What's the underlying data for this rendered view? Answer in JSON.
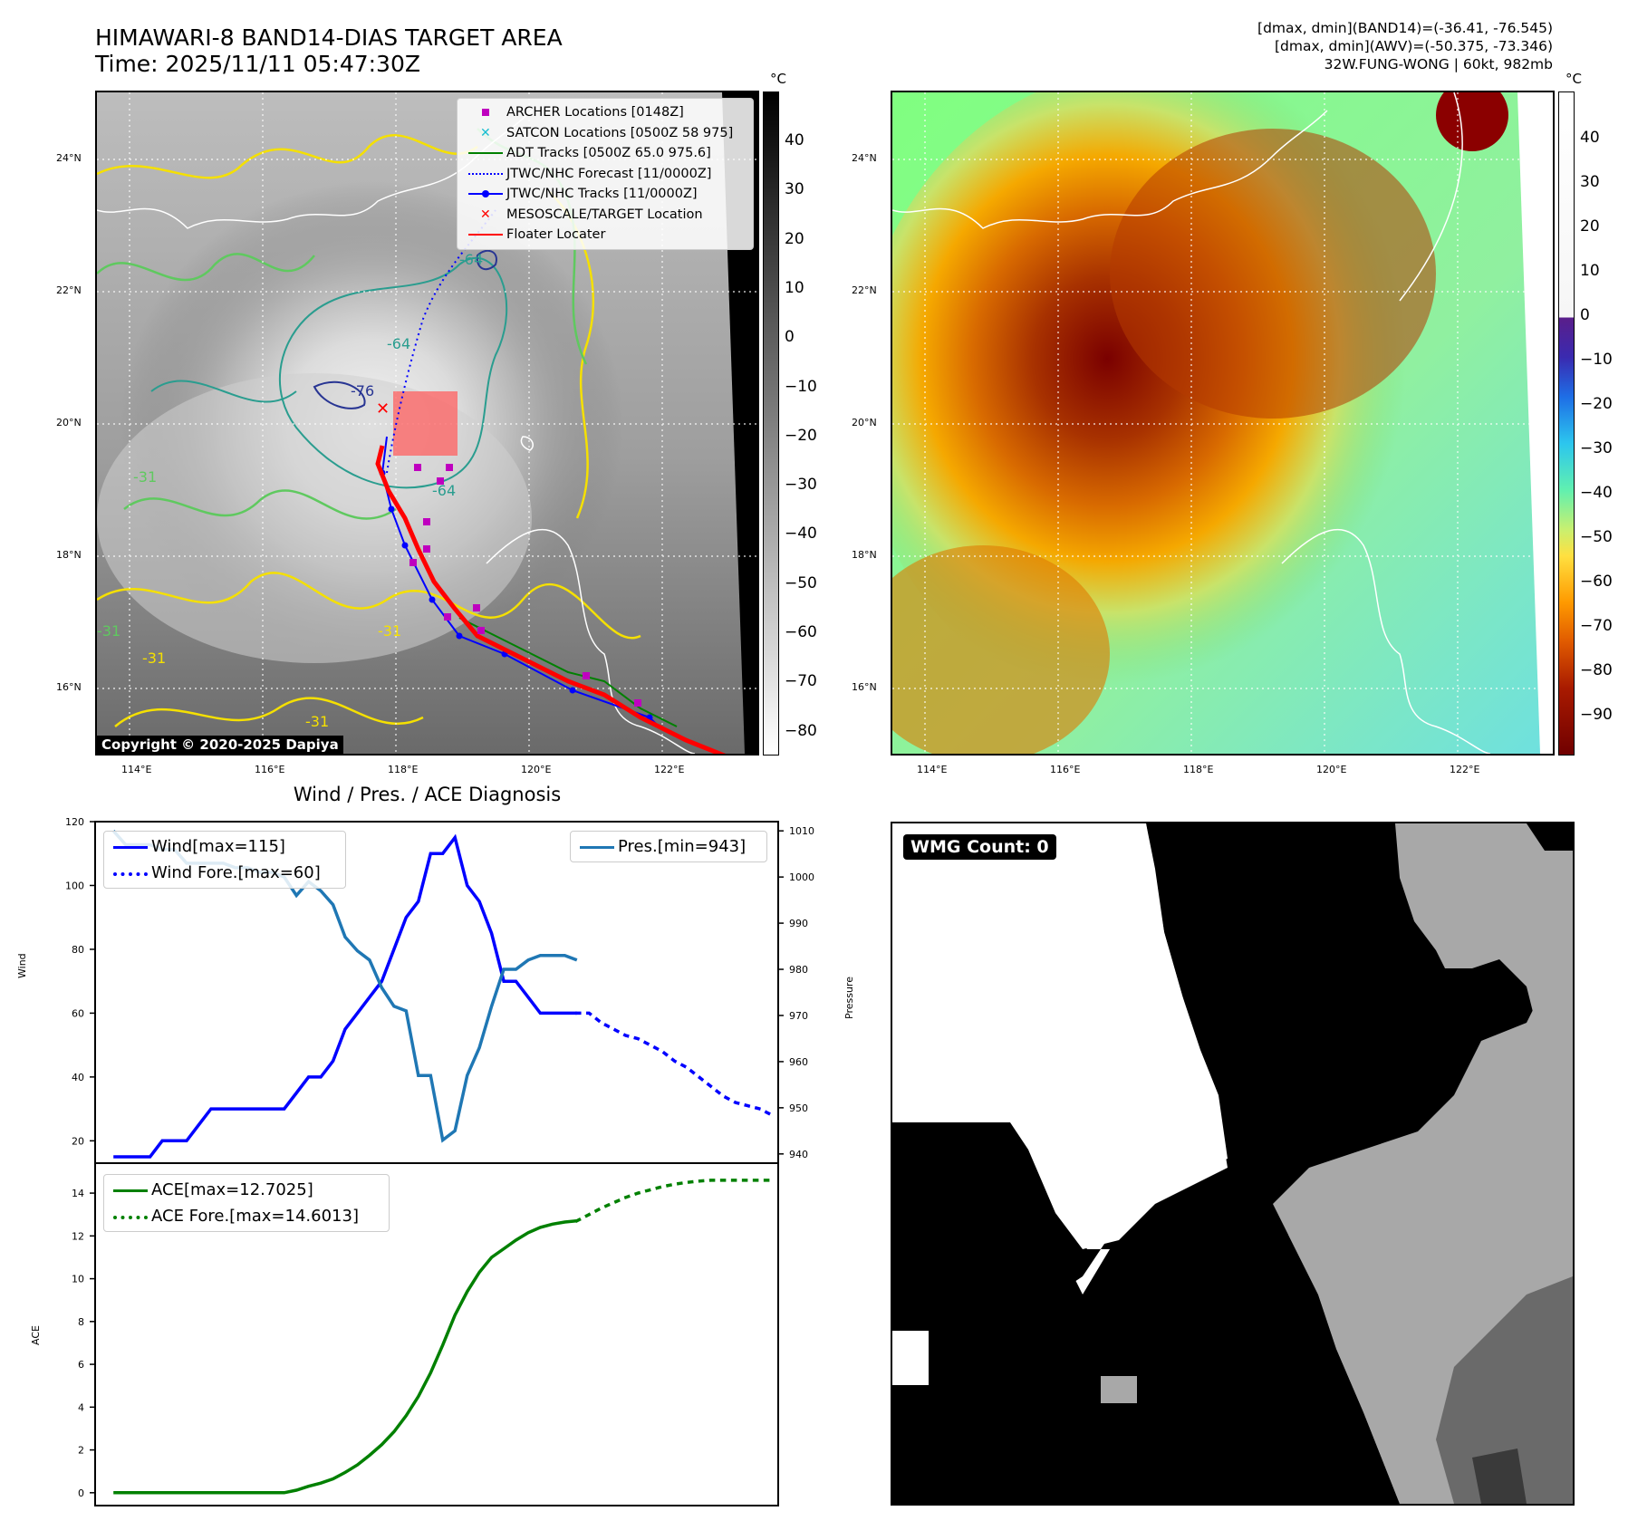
{
  "header": {
    "title_line1": "HIMAWARI-8 BAND14-DIAS TARGET AREA",
    "title_line2": "Time: 2025/11/11 05:47:30Z",
    "info_line1": "[dmax, dmin](BAND14)=(-36.41, -76.545)",
    "info_line2": "[dmax, dmin](AWV)=(-50.375, -73.346)",
    "info_line3": "32W.FUNG-WONG | 60kt, 982mb"
  },
  "colors": {
    "wind": "#0000ff",
    "pressure": "#1f77b4",
    "ace": "#008000",
    "track_red": "#ff0000",
    "archer": "#bf00bf",
    "satcon": "#17becf",
    "adt": "#008000"
  },
  "map_axes": {
    "lat_labels": [
      "24°N",
      "22°N",
      "20°N",
      "18°N",
      "16°N"
    ],
    "lon_labels": [
      "114°E",
      "116°E",
      "118°E",
      "120°E",
      "122°E"
    ],
    "contour_labels": [
      "-64",
      "-64",
      "-76",
      "-31",
      "-31",
      "-31",
      "-31",
      "-31",
      "-64"
    ]
  },
  "left_map": {
    "legend": [
      {
        "label": "ARCHER Locations [0148Z]",
        "icon": "square-marker-icon"
      },
      {
        "label": "SATCON Locations [0500Z 58 975]",
        "icon": "x-marker-icon"
      },
      {
        "label": "ADT Tracks [0500Z 65.0 975.6]",
        "icon": "solid-line-icon"
      },
      {
        "label": "JTWC/NHC Forecast [11/0000Z]",
        "icon": "dotted-line-icon"
      },
      {
        "label": "JTWC/NHC Tracks [11/0000Z]",
        "icon": "line-dot-icon"
      },
      {
        "label": "MESOSCALE/TARGET Location",
        "icon": "x-marker-icon"
      },
      {
        "label": "Floater Locater",
        "icon": "solid-line-icon"
      }
    ],
    "copyright": "Copyright © 2020-2025 Dapiya",
    "colorbar": {
      "unit": "°C",
      "ticks": [
        "40",
        "30",
        "20",
        "10",
        "0",
        "−10",
        "−20",
        "−30",
        "−40",
        "−50",
        "−60",
        "−70",
        "−80"
      ]
    }
  },
  "right_map": {
    "colorbar": {
      "unit": "°C",
      "ticks": [
        "40",
        "30",
        "20",
        "10",
        "0",
        "−10",
        "−20",
        "−30",
        "−40",
        "−50",
        "−60",
        "−70",
        "−80",
        "−90"
      ]
    }
  },
  "wmg_panel": {
    "label": "WMG Count: 0"
  },
  "chart_data": [
    {
      "type": "line",
      "title": "Wind / Pres. / ACE Diagnosis",
      "xlabel": "",
      "ylabel": "Wind",
      "y2label": "Pressure",
      "ylim": [
        13,
        120
      ],
      "y2lim": [
        938,
        1012
      ],
      "yticks": [
        "120",
        "100",
        "80",
        "60",
        "40",
        "20"
      ],
      "y2ticks": [
        "1010",
        "1000",
        "990",
        "980",
        "970",
        "960",
        "950",
        "940"
      ],
      "xlim": [
        -1.5,
        54.5
      ],
      "series": [
        {
          "name": "Wind[max=115]",
          "axis": "left",
          "x": [
            0,
            1,
            2,
            3,
            4,
            5,
            6,
            7,
            8,
            9,
            10,
            11,
            12,
            13,
            14,
            15,
            16,
            17,
            18,
            19,
            20,
            21,
            22,
            23,
            24,
            25,
            26,
            27,
            28,
            29,
            30,
            31,
            32,
            33,
            34,
            35,
            36,
            37,
            38
          ],
          "values": [
            15,
            15,
            15,
            15,
            20,
            20,
            20,
            25,
            30,
            30,
            30,
            30,
            30,
            30,
            30,
            35,
            40,
            40,
            45,
            55,
            60,
            65,
            70,
            80,
            90,
            95,
            110,
            110,
            115,
            100,
            95,
            85,
            70,
            70,
            65,
            60,
            60,
            60,
            60
          ]
        },
        {
          "name": "Wind Fore.[max=60]",
          "axis": "left",
          "dashed": true,
          "x": [
            38,
            39,
            40,
            41,
            42,
            43,
            44,
            45,
            46,
            47,
            48,
            49,
            50,
            51,
            52,
            53,
            54
          ],
          "values": [
            60,
            60,
            57,
            55,
            53,
            52,
            50,
            48,
            45,
            43,
            40,
            37,
            34,
            32,
            31,
            30,
            28
          ]
        },
        {
          "name": "Pres.[min=943]",
          "axis": "right",
          "x": [
            0,
            1,
            2,
            3,
            4,
            5,
            6,
            7,
            8,
            9,
            10,
            11,
            12,
            13,
            14,
            15,
            16,
            17,
            18,
            19,
            20,
            21,
            22,
            23,
            24,
            25,
            26,
            27,
            28,
            29,
            30,
            31,
            32,
            33,
            34,
            35,
            36,
            37,
            38
          ],
          "values": [
            1010,
            1007,
            1007,
            1007,
            1006,
            1006,
            1003,
            1003,
            1003,
            1003,
            1002,
            1002,
            1001,
            1001,
            1000,
            996,
            999,
            997,
            994,
            987,
            984,
            982,
            976,
            972,
            971,
            957,
            957,
            943,
            945,
            957,
            963,
            972,
            980,
            980,
            982,
            983,
            983,
            983,
            982
          ]
        }
      ]
    },
    {
      "type": "line",
      "title": "",
      "xlabel": "",
      "ylabel": "ACE",
      "ylim": [
        -0.6,
        15.4
      ],
      "yticks": [
        "14",
        "12",
        "10",
        "8",
        "6",
        "4",
        "2",
        "0"
      ],
      "xlim": [
        -1.5,
        54.5
      ],
      "series": [
        {
          "name": "ACE[max=12.7025]",
          "x": [
            0,
            1,
            2,
            3,
            4,
            5,
            6,
            7,
            8,
            9,
            10,
            11,
            12,
            13,
            14,
            15,
            16,
            17,
            18,
            19,
            20,
            21,
            22,
            23,
            24,
            25,
            26,
            27,
            28,
            29,
            30,
            31,
            32,
            33,
            34,
            35,
            36,
            37,
            38
          ],
          "values": [
            0,
            0,
            0,
            0,
            0,
            0,
            0,
            0,
            0,
            0,
            0,
            0,
            0,
            0,
            0,
            0.12,
            0.3,
            0.45,
            0.65,
            0.95,
            1.3,
            1.75,
            2.25,
            2.85,
            3.6,
            4.5,
            5.6,
            6.9,
            8.3,
            9.4,
            10.3,
            11.0,
            11.4,
            11.8,
            12.15,
            12.4,
            12.55,
            12.65,
            12.7025
          ]
        },
        {
          "name": "ACE Fore.[max=14.6013]",
          "dashed": true,
          "x": [
            38,
            39,
            40,
            41,
            42,
            43,
            44,
            45,
            46,
            47,
            48,
            49,
            50,
            51,
            52,
            53,
            54
          ],
          "values": [
            12.7025,
            13.0,
            13.3,
            13.55,
            13.8,
            14.0,
            14.15,
            14.3,
            14.42,
            14.5,
            14.56,
            14.6,
            14.6013,
            14.6013,
            14.6013,
            14.6013,
            14.6013
          ]
        }
      ]
    }
  ]
}
